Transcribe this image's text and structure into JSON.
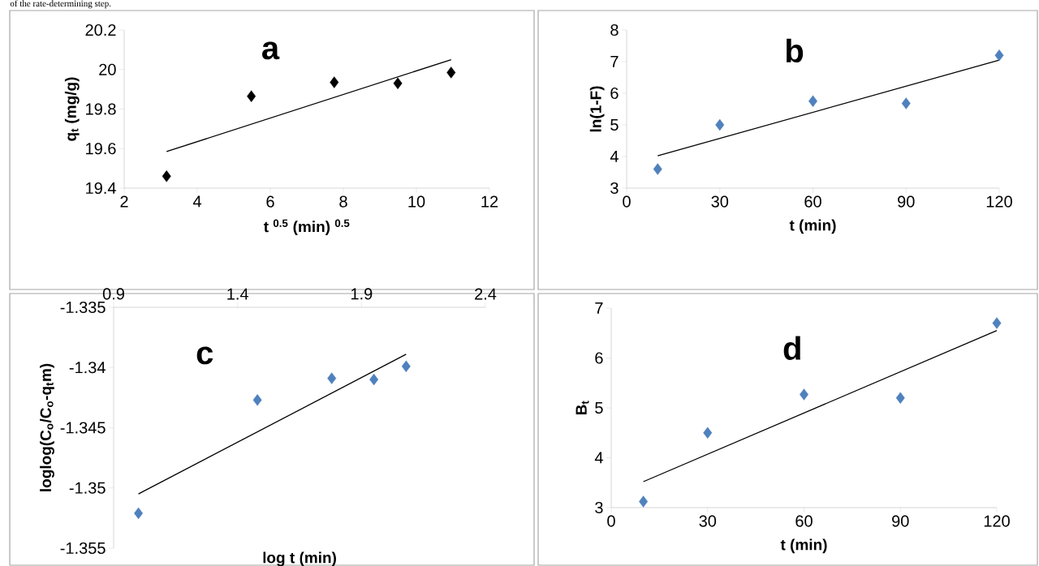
{
  "chart_data": [
    {
      "type": "scatter",
      "title": "a",
      "xlabel": "t $^{0.5}$ (min) $^{0.5}$",
      "ylabel": "q$_{t}$ (mg/g)",
      "annotations": [
        "of the rate-determining step."
      ],
      "xlim": [
        2,
        12
      ],
      "ylim": [
        19.4,
        20.2
      ],
      "xticks": [
        2,
        4,
        6,
        8,
        10,
        12
      ],
      "yticks": [
        19.4,
        19.6,
        19.8,
        20,
        20.2
      ],
      "marker": "diamond",
      "series": [
        {
          "type": "scatter",
          "color": "#000000",
          "x": [
            3.16,
            5.48,
            7.75,
            9.49,
            10.95
          ],
          "values": [
            19.46,
            19.865,
            19.935,
            19.93,
            19.985
          ]
        },
        {
          "type": "line",
          "color": "#000000",
          "marker": "none",
          "x": [
            3.16,
            10.95
          ],
          "values": [
            19.585,
            20.05
          ]
        }
      ]
    },
    {
      "type": "scatter",
      "title": "b",
      "xlabel": "t (min)",
      "ylabel": "ln(1-F)",
      "xlim": [
        0,
        120
      ],
      "ylim": [
        3,
        8
      ],
      "xticks": [
        0,
        30,
        60,
        90,
        120
      ],
      "yticks": [
        3,
        4,
        5,
        6,
        7,
        8
      ],
      "marker": "diamond",
      "series": [
        {
          "type": "scatter",
          "color": "#4f81bd",
          "x": [
            10,
            30,
            60,
            90,
            120
          ],
          "values": [
            3.6,
            5.0,
            5.75,
            5.68,
            7.2
          ]
        },
        {
          "type": "line",
          "color": "#000000",
          "marker": "none",
          "x": [
            10,
            120
          ],
          "values": [
            4.02,
            7.05
          ]
        }
      ]
    },
    {
      "type": "scatter",
      "title": "c",
      "xlabel": "log t (min)",
      "ylabel": "loglog(C$_{o}$/C$_{o}$-q$_{t}$m)",
      "xlim": [
        0.9,
        2.4
      ],
      "ylim": [
        -1.355,
        -1.335
      ],
      "xticks": [
        0.9,
        1.4,
        1.9,
        2.4
      ],
      "yticks": [
        -1.355,
        -1.35,
        -1.345,
        -1.34,
        -1.335
      ],
      "marker": "diamond",
      "series": [
        {
          "type": "scatter",
          "color": "#4f81bd",
          "x": [
            1.0,
            1.48,
            1.78,
            1.95,
            2.08
          ],
          "values": [
            -1.3521,
            -1.3427,
            -1.3409,
            -1.341,
            -1.3399
          ]
        },
        {
          "type": "line",
          "color": "#000000",
          "marker": "none",
          "x": [
            1.0,
            2.08
          ],
          "values": [
            -1.3505,
            -1.3389
          ]
        }
      ]
    },
    {
      "type": "scatter",
      "title": "d",
      "xlabel": "t (min)",
      "ylabel": "B$_{t}$",
      "xlim": [
        0,
        120
      ],
      "ylim": [
        3,
        7
      ],
      "xticks": [
        0,
        30,
        60,
        90,
        120
      ],
      "yticks": [
        3,
        4,
        5,
        6,
        7
      ],
      "marker": "diamond",
      "series": [
        {
          "type": "scatter",
          "color": "#4f81bd",
          "x": [
            10,
            30,
            60,
            90,
            120
          ],
          "values": [
            3.12,
            4.5,
            5.27,
            5.2,
            6.7
          ]
        },
        {
          "type": "line",
          "color": "#000000",
          "marker": "none",
          "x": [
            10,
            120
          ],
          "values": [
            3.52,
            6.55
          ]
        }
      ]
    }
  ]
}
